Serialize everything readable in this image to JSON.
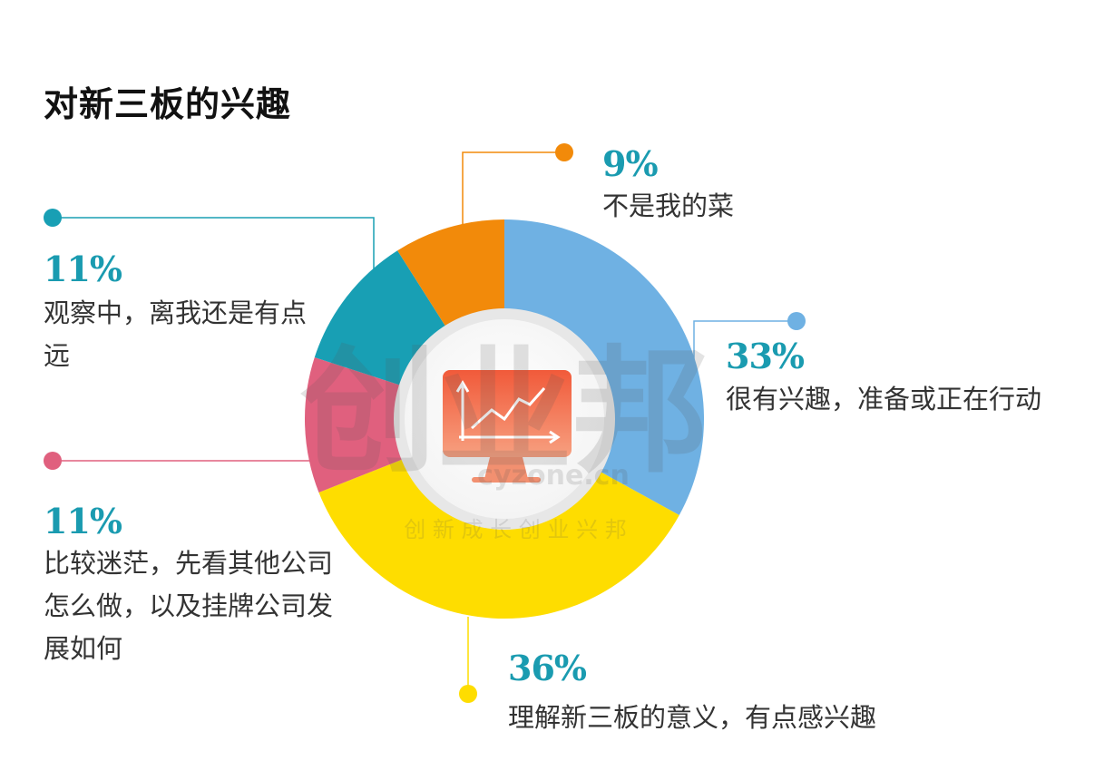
{
  "chart_data": {
    "type": "pie",
    "title": "对新三板的兴趣",
    "slices": [
      {
        "label": "很有兴趣，准备或正在行动",
        "value": 33,
        "value_label": "33%",
        "color": "#6fb1e3"
      },
      {
        "label": "理解新三板的意义，有点感兴趣",
        "value": 36,
        "value_label": "36%",
        "color": "#fedd00"
      },
      {
        "label": "比较迷茫，先看其他公司怎么做，以及挂牌公司发展如何",
        "value": 11,
        "value_label": "11%",
        "color": "#e0607e"
      },
      {
        "label": "观察中，离我还是有点远",
        "value": 11,
        "value_label": "11%",
        "color": "#189fb4"
      },
      {
        "label": "不是我的菜",
        "value": 9,
        "value_label": "9%",
        "color": "#f28a0a"
      }
    ]
  },
  "watermark": {
    "brand": "创业邦",
    "domain": "cyzone.cn",
    "slogan": "创 新 成 长   创 业 兴 邦"
  },
  "center_icon": "monitor-growth-chart-icon",
  "colors": {
    "accent_text": "#1a9bb0",
    "center_red": "#e8442c"
  }
}
